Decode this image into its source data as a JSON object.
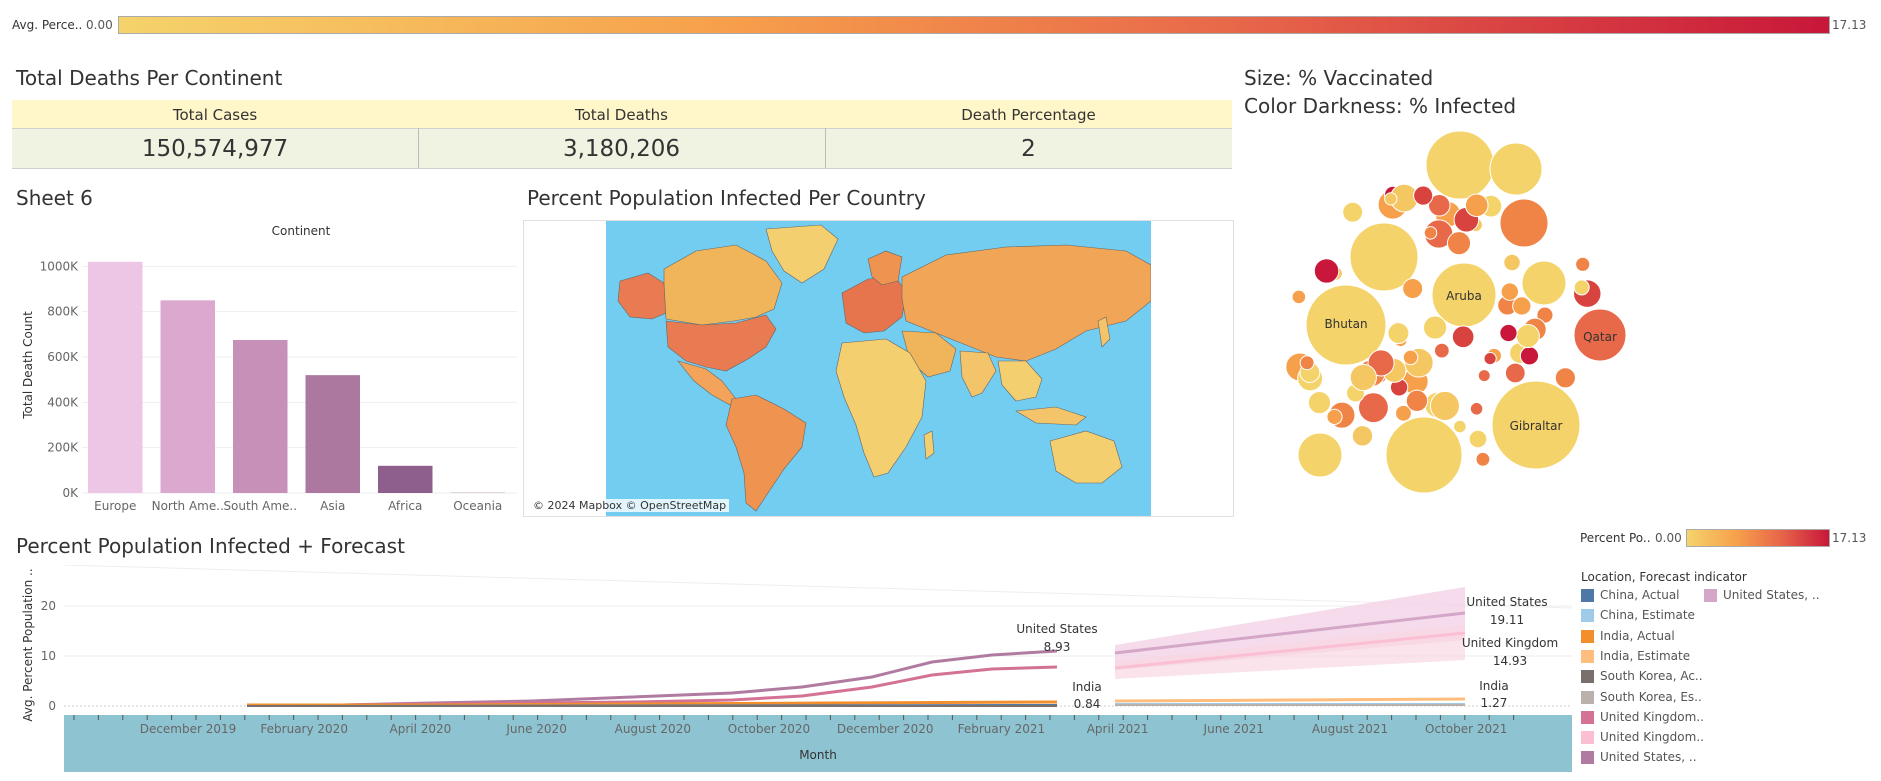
{
  "top_legend": {
    "label": "Avg. Perce..",
    "min": "0.00",
    "max": "17.13"
  },
  "kpi": {
    "title": "Total Deaths Per Continent",
    "headers": [
      "Total Cases",
      "Total Deaths",
      "Death Percentage"
    ],
    "values": [
      "150,574,977",
      "3,180,206",
      "2"
    ]
  },
  "bar_chart": {
    "sheet_title": "Sheet 6",
    "chart_data": {
      "type": "bar",
      "title": "Continent",
      "ylabel": "Total Death Count",
      "categories": [
        "Europe",
        "North Ame..",
        "South Ame..",
        "Asia",
        "Africa",
        "Oceania"
      ],
      "values": [
        1020000,
        850000,
        675000,
        520000,
        120000,
        1000
      ],
      "ylim": [
        0,
        1050000
      ],
      "yticks": [
        "0K",
        "200K",
        "400K",
        "600K",
        "800K",
        "1000K"
      ],
      "colors": [
        "#ecc6e4",
        "#dba8cf",
        "#c690b9",
        "#ad78a0",
        "#8e5e8c",
        "#8e5e8c"
      ]
    }
  },
  "map": {
    "title": "Percent Population Infected Per Country",
    "attribution": "© 2024 Mapbox © OpenStreetMap"
  },
  "bubble": {
    "title_line1": "Size: % Vaccinated",
    "title_line2": "Color Darkness: % Infected",
    "labels": [
      "Aruba",
      "Bhutan",
      "Qatar",
      "Gibraltar"
    ]
  },
  "bubble_legend": {
    "label": "Percent Po..",
    "min": "0.00",
    "max": "17.13"
  },
  "forecast": {
    "title": "Percent Population Infected + Forecast",
    "ylabel": "Avg. Percent Population ..",
    "xlabel": "Month",
    "chart_data": {
      "type": "line",
      "yticks": [
        "0",
        "10",
        "20"
      ],
      "ylim": [
        0,
        25
      ],
      "x_ticks": [
        "December 2019",
        "February 2020",
        "April 2020",
        "June 2020",
        "August 2020",
        "October 2020",
        "December 2020",
        "February 2021",
        "April 2021",
        "June 2021",
        "August 2021",
        "October 2021"
      ],
      "annotations": [
        {
          "name": "United States",
          "value": "8.93"
        },
        {
          "name": "India",
          "value": "0.84"
        },
        {
          "name": "United States",
          "value": "19.11"
        },
        {
          "name": "United Kingdom",
          "value": "14.93"
        },
        {
          "name": "India",
          "value": "1.27"
        }
      ]
    },
    "legend_title": "Location, Forecast indicator",
    "legend": [
      {
        "label": "China, Actual",
        "color": "#4e79a7"
      },
      {
        "label": "China, Estimate",
        "color": "#a0cbe8"
      },
      {
        "label": "India, Actual",
        "color": "#f28e2b"
      },
      {
        "label": "India, Estimate",
        "color": "#ffbe7d"
      },
      {
        "label": "South Korea, Ac..",
        "color": "#79706e"
      },
      {
        "label": "South Korea, Es..",
        "color": "#bab0ac"
      },
      {
        "label": "United Kingdom..",
        "color": "#d37295"
      },
      {
        "label": "United Kingdom..",
        "color": "#fabfd2"
      },
      {
        "label": "United States, ..",
        "color": "#b07aa1"
      },
      {
        "label": "United States, ..",
        "color": "#d4a6c8"
      }
    ]
  }
}
